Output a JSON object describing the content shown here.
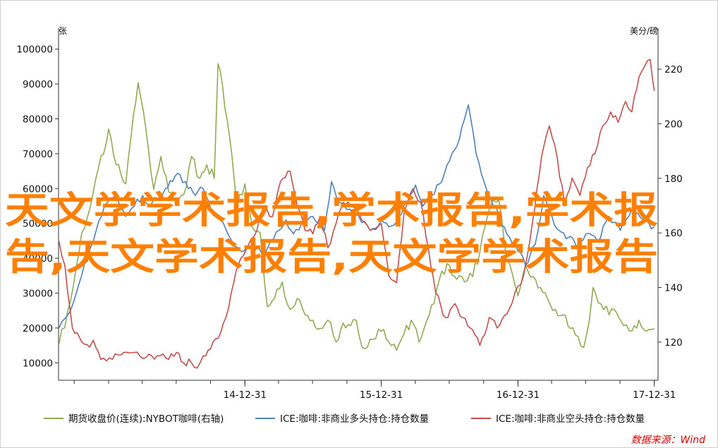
{
  "chart_data": {
    "type": "line",
    "left_axis": {
      "unit": "张",
      "ticks": [
        10000,
        20000,
        30000,
        40000,
        50000,
        60000,
        70000,
        80000,
        90000,
        100000
      ],
      "range": [
        5000,
        106000
      ]
    },
    "right_axis": {
      "unit": "美分/磅",
      "ticks": [
        120,
        140,
        160,
        180,
        200,
        220
      ],
      "range": [
        106,
        235
      ]
    },
    "x_axis": {
      "ticks": [
        "14-12-31",
        "15-12-31",
        "16-12-31",
        "17-12-31"
      ],
      "range": [
        "2013-08-19",
        "2018-01-10"
      ]
    },
    "series": [
      {
        "name": "期货收盘价(连续):NYBOT咖啡(右轴)",
        "axis": "right",
        "color": "#8fac53",
        "points": [
          [
            "2013-08-20",
            119
          ],
          [
            "2013-09-20",
            135
          ],
          [
            "2013-10-20",
            160
          ],
          [
            "2013-11-20",
            175
          ],
          [
            "2013-12-31",
            198
          ],
          [
            "2014-01-20",
            185
          ],
          [
            "2014-02-15",
            178
          ],
          [
            "2014-03-01",
            195
          ],
          [
            "2014-03-20",
            215
          ],
          [
            "2014-04-10",
            198
          ],
          [
            "2014-05-01",
            176
          ],
          [
            "2014-05-20",
            188
          ],
          [
            "2014-06-10",
            175
          ],
          [
            "2014-07-01",
            172
          ],
          [
            "2014-07-20",
            174
          ],
          [
            "2014-08-10",
            188
          ],
          [
            "2014-09-01",
            180
          ],
          [
            "2014-09-20",
            185
          ],
          [
            "2014-10-10",
            180
          ],
          [
            "2014-10-20",
            222
          ],
          [
            "2014-11-01",
            214
          ],
          [
            "2014-11-20",
            195
          ],
          [
            "2014-12-10",
            170
          ],
          [
            "2014-12-31",
            178
          ],
          [
            "2015-01-20",
            162
          ],
          [
            "2015-02-10",
            160
          ],
          [
            "2015-03-01",
            133
          ],
          [
            "2015-03-20",
            136
          ],
          [
            "2015-04-10",
            142
          ],
          [
            "2015-05-01",
            132
          ],
          [
            "2015-05-20",
            136
          ],
          [
            "2015-06-10",
            130
          ],
          [
            "2015-07-01",
            128
          ],
          [
            "2015-07-20",
            125
          ],
          [
            "2015-08-10",
            128
          ],
          [
            "2015-09-01",
            120
          ],
          [
            "2015-09-20",
            127
          ],
          [
            "2015-10-10",
            126
          ],
          [
            "2015-10-25",
            128
          ],
          [
            "2015-11-10",
            118
          ],
          [
            "2015-12-01",
            121
          ],
          [
            "2015-12-31",
            124
          ],
          [
            "2016-01-20",
            120
          ],
          [
            "2016-02-10",
            117
          ],
          [
            "2016-03-01",
            123
          ],
          [
            "2016-03-20",
            128
          ],
          [
            "2016-04-10",
            120
          ],
          [
            "2016-05-01",
            128
          ],
          [
            "2016-05-20",
            134
          ],
          [
            "2016-06-10",
            146
          ],
          [
            "2016-07-01",
            148
          ],
          [
            "2016-07-20",
            143
          ],
          [
            "2016-08-10",
            142
          ],
          [
            "2016-09-01",
            144
          ],
          [
            "2016-09-20",
            153
          ],
          [
            "2016-10-10",
            166
          ],
          [
            "2016-10-25",
            172
          ],
          [
            "2016-11-10",
            172
          ],
          [
            "2016-12-01",
            150
          ],
          [
            "2016-12-31",
            137
          ],
          [
            "2017-01-20",
            148
          ],
          [
            "2017-02-10",
            144
          ],
          [
            "2017-03-01",
            140
          ],
          [
            "2017-03-20",
            136
          ],
          [
            "2017-04-10",
            132
          ],
          [
            "2017-05-01",
            130
          ],
          [
            "2017-05-20",
            125
          ],
          [
            "2017-06-10",
            122
          ],
          [
            "2017-06-25",
            118
          ],
          [
            "2017-07-10",
            128
          ],
          [
            "2017-07-20",
            140
          ],
          [
            "2017-08-10",
            134
          ],
          [
            "2017-09-01",
            130
          ],
          [
            "2017-09-20",
            131
          ],
          [
            "2017-10-10",
            126
          ],
          [
            "2017-11-01",
            124
          ],
          [
            "2017-11-20",
            128
          ],
          [
            "2017-12-10",
            124
          ],
          [
            "2017-12-31",
            125
          ]
        ]
      },
      {
        "name": "ICE:咖啡:非商业多头持仓:持仓数量",
        "axis": "left",
        "color": "#4f81bd",
        "points": [
          [
            "2013-08-20",
            20000
          ],
          [
            "2013-09-20",
            25000
          ],
          [
            "2013-10-20",
            35000
          ],
          [
            "2013-11-20",
            45000
          ],
          [
            "2013-12-20",
            55000
          ],
          [
            "2014-01-20",
            58000
          ],
          [
            "2014-02-15",
            52000
          ],
          [
            "2014-03-10",
            55000
          ],
          [
            "2014-04-01",
            58000
          ],
          [
            "2014-04-20",
            55000
          ],
          [
            "2014-05-10",
            57000
          ],
          [
            "2014-06-01",
            60000
          ],
          [
            "2014-06-20",
            62000
          ],
          [
            "2014-07-10",
            64000
          ],
          [
            "2014-08-01",
            60000
          ],
          [
            "2014-08-20",
            58000
          ],
          [
            "2014-09-10",
            60000
          ],
          [
            "2014-10-01",
            54000
          ],
          [
            "2014-10-20",
            52000
          ],
          [
            "2014-11-20",
            46000
          ],
          [
            "2014-12-20",
            42000
          ],
          [
            "2015-01-20",
            44000
          ],
          [
            "2015-02-15",
            41000
          ],
          [
            "2015-03-10",
            45000
          ],
          [
            "2015-04-01",
            48000
          ],
          [
            "2015-04-20",
            51000
          ],
          [
            "2015-05-10",
            47000
          ],
          [
            "2015-06-01",
            50000
          ],
          [
            "2015-07-01",
            52000
          ],
          [
            "2015-08-01",
            48000
          ],
          [
            "2015-08-20",
            62000
          ],
          [
            "2015-09-10",
            56000
          ],
          [
            "2015-10-01",
            54000
          ],
          [
            "2015-11-01",
            52000
          ],
          [
            "2015-12-01",
            48000
          ],
          [
            "2015-12-31",
            51000
          ],
          [
            "2016-01-20",
            49000
          ],
          [
            "2016-02-15",
            52000
          ],
          [
            "2016-03-10",
            56000
          ],
          [
            "2016-04-01",
            61000
          ],
          [
            "2016-04-20",
            55000
          ],
          [
            "2016-05-15",
            58000
          ],
          [
            "2016-06-10",
            62000
          ],
          [
            "2016-07-01",
            68000
          ],
          [
            "2016-07-20",
            72000
          ],
          [
            "2016-08-10",
            80000
          ],
          [
            "2016-08-20",
            84000
          ],
          [
            "2016-09-10",
            70000
          ],
          [
            "2016-10-01",
            62000
          ],
          [
            "2016-10-20",
            57000
          ],
          [
            "2016-11-10",
            52000
          ],
          [
            "2016-12-01",
            47000
          ],
          [
            "2016-12-31",
            42000
          ],
          [
            "2017-01-20",
            38000
          ],
          [
            "2017-02-15",
            44000
          ],
          [
            "2017-03-10",
            58000
          ],
          [
            "2017-04-01",
            52000
          ],
          [
            "2017-04-20",
            48000
          ],
          [
            "2017-05-15",
            46000
          ],
          [
            "2017-06-10",
            43000
          ],
          [
            "2017-07-01",
            47000
          ],
          [
            "2017-08-01",
            45000
          ],
          [
            "2017-09-01",
            52000
          ],
          [
            "2017-10-01",
            48000
          ],
          [
            "2017-11-01",
            54000
          ],
          [
            "2017-12-01",
            51000
          ],
          [
            "2017-12-31",
            49000
          ]
        ]
      },
      {
        "name": "ICE:咖啡:非商业空头持仓:持仓数量",
        "axis": "left",
        "color": "#c0504d",
        "points": [
          [
            "2013-08-20",
            45000
          ],
          [
            "2013-09-05",
            38000
          ],
          [
            "2013-09-25",
            20000
          ],
          [
            "2013-10-20",
            16000
          ],
          [
            "2013-11-10",
            14500
          ],
          [
            "2013-11-20",
            16500
          ],
          [
            "2013-12-10",
            11000
          ],
          [
            "2014-01-10",
            11000
          ],
          [
            "2014-02-10",
            13000
          ],
          [
            "2014-03-10",
            13000
          ],
          [
            "2014-04-10",
            11500
          ],
          [
            "2014-05-10",
            12000
          ],
          [
            "2014-06-10",
            11000
          ],
          [
            "2014-07-01",
            13000
          ],
          [
            "2014-07-20",
            10000
          ],
          [
            "2014-08-10",
            10000
          ],
          [
            "2014-08-25",
            8500
          ],
          [
            "2014-09-10",
            12000
          ],
          [
            "2014-09-30",
            14000
          ],
          [
            "2014-10-20",
            17000
          ],
          [
            "2014-11-10",
            23000
          ],
          [
            "2014-12-01",
            33000
          ],
          [
            "2014-12-20",
            40000
          ],
          [
            "2015-01-10",
            44000
          ],
          [
            "2015-02-01",
            48000
          ],
          [
            "2015-02-20",
            55000
          ],
          [
            "2015-03-15",
            52000
          ],
          [
            "2015-04-05",
            62000
          ],
          [
            "2015-05-01",
            65000
          ],
          [
            "2015-05-20",
            55000
          ],
          [
            "2015-06-10",
            48000
          ],
          [
            "2015-07-01",
            47000
          ],
          [
            "2015-07-20",
            52000
          ],
          [
            "2015-08-10",
            43000
          ],
          [
            "2015-09-01",
            50000
          ],
          [
            "2015-09-20",
            56000
          ],
          [
            "2015-10-10",
            55000
          ],
          [
            "2015-11-01",
            53000
          ],
          [
            "2015-12-01",
            48000
          ],
          [
            "2015-12-31",
            50000
          ],
          [
            "2016-01-20",
            35000
          ],
          [
            "2016-02-10",
            33000
          ],
          [
            "2016-03-01",
            53000
          ],
          [
            "2016-03-25",
            60000
          ],
          [
            "2016-04-15",
            56000
          ],
          [
            "2016-05-05",
            43000
          ],
          [
            "2016-05-25",
            30000
          ],
          [
            "2016-06-20",
            23000
          ],
          [
            "2016-07-15",
            27000
          ],
          [
            "2016-08-05",
            23000
          ],
          [
            "2016-08-25",
            20000
          ],
          [
            "2016-09-20",
            15000
          ],
          [
            "2016-10-15",
            23000
          ],
          [
            "2016-11-05",
            20000
          ],
          [
            "2016-12-01",
            24000
          ],
          [
            "2016-12-31",
            32000
          ],
          [
            "2017-01-15",
            35000
          ],
          [
            "2017-02-01",
            45000
          ],
          [
            "2017-02-20",
            60000
          ],
          [
            "2017-03-10",
            72000
          ],
          [
            "2017-03-25",
            78000
          ],
          [
            "2017-04-15",
            69000
          ],
          [
            "2017-05-05",
            55000
          ],
          [
            "2017-05-25",
            63000
          ],
          [
            "2017-06-15",
            58000
          ],
          [
            "2017-07-05",
            66000
          ],
          [
            "2017-07-25",
            70000
          ],
          [
            "2017-08-15",
            78000
          ],
          [
            "2017-09-05",
            82000
          ],
          [
            "2017-09-25",
            79000
          ],
          [
            "2017-10-15",
            85000
          ],
          [
            "2017-11-01",
            82000
          ],
          [
            "2017-11-20",
            92000
          ],
          [
            "2017-12-05",
            95000
          ],
          [
            "2017-12-20",
            97000
          ],
          [
            "2017-12-31",
            88000
          ]
        ]
      }
    ],
    "legend_position": "bottom",
    "grid": false
  },
  "source": "数据来源：Wind",
  "overlay": {
    "line1": "天文学学术报告,学术报告,学术报",
    "line2": "告,天文学术报告,天文学学术报告"
  }
}
